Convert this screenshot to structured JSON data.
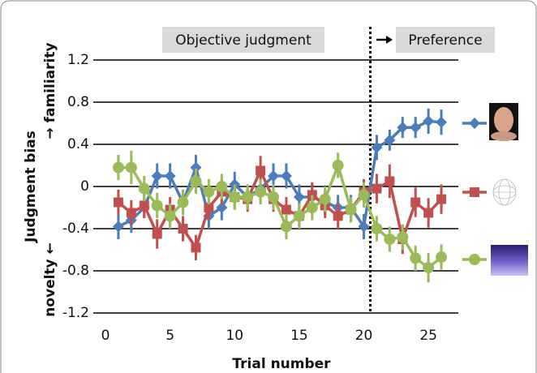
{
  "chart_data": {
    "type": "line",
    "phase_labels": [
      "Objective judgment",
      "Preference"
    ],
    "y_label": "Judgment bias",
    "y_label_top": "→ familiarity",
    "y_label_bottom": "novelty ←",
    "x_label": "Trial number",
    "divider_x": 20.5,
    "x": [
      1,
      2,
      3,
      4,
      5,
      6,
      7,
      8,
      9,
      10,
      11,
      12,
      13,
      14,
      15,
      16,
      17,
      18,
      19,
      20,
      21,
      22,
      23,
      24,
      25,
      26
    ],
    "series": [
      {
        "color": "#4a7ebb",
        "marker": "diamond",
        "values": [
          -0.38,
          -0.32,
          -0.2,
          0.1,
          0.1,
          -0.15,
          0.18,
          -0.28,
          -0.2,
          0.02,
          -0.1,
          -0.02,
          0.1,
          0.1,
          -0.1,
          -0.1,
          -0.15,
          -0.2,
          -0.2,
          -0.38,
          0.37,
          0.44,
          0.56,
          0.56,
          0.62,
          0.61
        ],
        "errors": [
          0.12,
          0.12,
          0.1,
          0.12,
          0.12,
          0.12,
          0.12,
          0.12,
          0.12,
          0.12,
          0.12,
          0.12,
          0.12,
          0.12,
          0.12,
          0.12,
          0.12,
          0.12,
          0.12,
          0.12,
          0.12,
          0.1,
          0.1,
          0.1,
          0.12,
          0.12
        ]
      },
      {
        "color": "#c0504d",
        "marker": "square",
        "values": [
          -0.15,
          -0.25,
          -0.18,
          -0.45,
          -0.22,
          -0.4,
          -0.58,
          -0.2,
          -0.05,
          -0.1,
          -0.12,
          0.15,
          -0.12,
          -0.22,
          -0.28,
          -0.08,
          -0.18,
          -0.28,
          -0.22,
          -0.05,
          -0.02,
          0.05,
          -0.5,
          -0.15,
          -0.25,
          -0.12
        ],
        "errors": [
          0.12,
          0.12,
          0.12,
          0.14,
          0.12,
          0.12,
          0.12,
          0.12,
          0.12,
          0.12,
          0.12,
          0.14,
          0.12,
          0.12,
          0.12,
          0.12,
          0.12,
          0.12,
          0.12,
          0.12,
          0.14,
          0.16,
          0.14,
          0.14,
          0.14,
          0.14
        ]
      },
      {
        "color": "#9bbb59",
        "marker": "circle",
        "values": [
          0.18,
          0.18,
          -0.02,
          -0.18,
          -0.28,
          -0.15,
          0.05,
          -0.05,
          0.0,
          -0.1,
          -0.1,
          -0.05,
          -0.1,
          -0.38,
          -0.28,
          -0.2,
          -0.12,
          0.2,
          -0.22,
          -0.08,
          -0.4,
          -0.5,
          -0.48,
          -0.68,
          -0.77,
          -0.67
        ],
        "errors": [
          0.12,
          0.16,
          0.12,
          0.12,
          0.12,
          0.12,
          0.12,
          0.12,
          0.12,
          0.12,
          0.12,
          0.12,
          0.12,
          0.12,
          0.12,
          0.12,
          0.12,
          0.12,
          0.12,
          0.12,
          0.12,
          0.12,
          0.12,
          0.12,
          0.14,
          0.12
        ]
      }
    ],
    "xlim": [
      0,
      27
    ],
    "xticks": [
      0,
      5,
      10,
      15,
      20,
      25
    ],
    "ylim": [
      -1.2,
      1.2
    ],
    "yticks": [
      -1.2,
      -0.8,
      -0.4,
      0,
      0.4,
      0.8,
      1.2
    ],
    "grid": true
  }
}
